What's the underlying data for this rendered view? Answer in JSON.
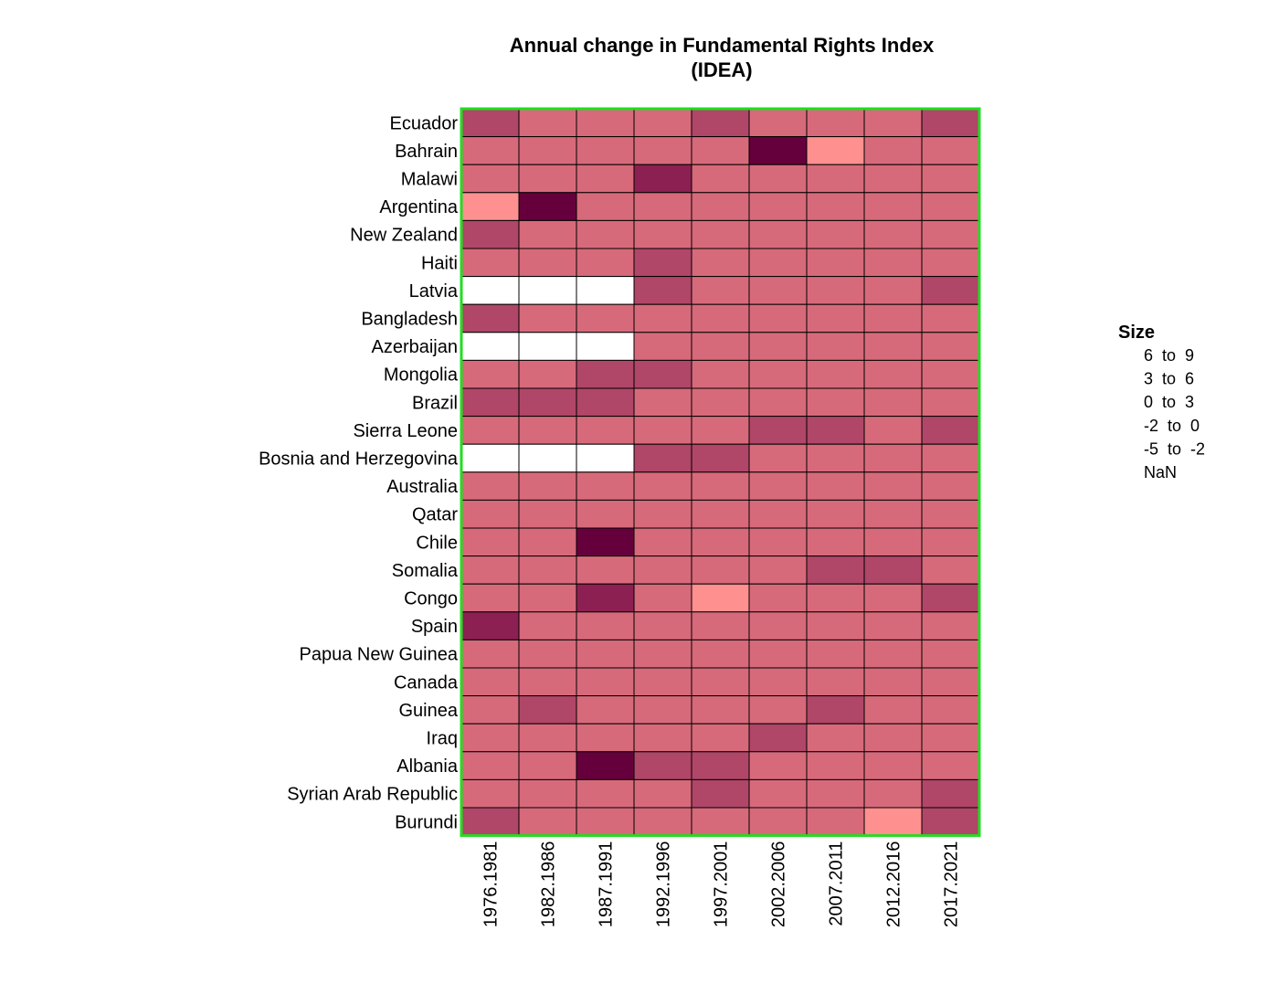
{
  "chart_data": {
    "type": "heatmap",
    "title": [
      "Annual change in Fundamental Rights Index",
      "(IDEA)"
    ],
    "rows": [
      "Ecuador",
      "Bahrain",
      "Malawi",
      "Argentina",
      "New Zealand",
      "Haiti",
      "Latvia",
      "Bangladesh",
      "Azerbaijan",
      "Mongolia",
      "Brazil",
      "Sierra Leone",
      "Bosnia and Herzegovina",
      "Australia",
      "Qatar",
      "Chile",
      "Somalia",
      "Congo",
      "Spain",
      "Papua New Guinea",
      "Canada",
      "Guinea",
      "Iraq",
      "Albania",
      "Syrian Arab Republic",
      "Burundi"
    ],
    "columns": [
      "1976.1981",
      "1982.1986",
      "1987.1991",
      "1992.1996",
      "1997.2001",
      "2002.2006",
      "2007.2011",
      "2012.2016",
      "2017.2021"
    ],
    "bin_labels": [
      "6  to  9",
      "3  to  6",
      "0  to  3",
      "-2  to  0",
      "-5  to  -2",
      "NaN"
    ],
    "bin_colors": [
      "#66003d",
      "#8c2052",
      "#b04668",
      "#d76a7a",
      "#ff9090",
      "#ffffff"
    ],
    "cell_bins": [
      [
        2,
        3,
        3,
        3,
        2,
        3,
        3,
        3,
        2
      ],
      [
        3,
        3,
        3,
        3,
        3,
        0,
        4,
        3,
        3
      ],
      [
        3,
        3,
        3,
        1,
        3,
        3,
        3,
        3,
        3
      ],
      [
        4,
        0,
        3,
        3,
        3,
        3,
        3,
        3,
        3
      ],
      [
        2,
        3,
        3,
        3,
        3,
        3,
        3,
        3,
        3
      ],
      [
        3,
        3,
        3,
        2,
        3,
        3,
        3,
        3,
        3
      ],
      [
        5,
        5,
        5,
        2,
        3,
        3,
        3,
        3,
        2
      ],
      [
        2,
        3,
        3,
        3,
        3,
        3,
        3,
        3,
        3
      ],
      [
        5,
        5,
        5,
        3,
        3,
        3,
        3,
        3,
        3
      ],
      [
        3,
        3,
        2,
        2,
        3,
        3,
        3,
        3,
        3
      ],
      [
        2,
        2,
        2,
        3,
        3,
        3,
        3,
        3,
        3
      ],
      [
        3,
        3,
        3,
        3,
        3,
        2,
        2,
        3,
        2
      ],
      [
        5,
        5,
        5,
        2,
        2,
        3,
        3,
        3,
        3
      ],
      [
        3,
        3,
        3,
        3,
        3,
        3,
        3,
        3,
        3
      ],
      [
        3,
        3,
        3,
        3,
        3,
        3,
        3,
        3,
        3
      ],
      [
        3,
        3,
        0,
        3,
        3,
        3,
        3,
        3,
        3
      ],
      [
        3,
        3,
        3,
        3,
        3,
        3,
        2,
        2,
        3
      ],
      [
        3,
        3,
        1,
        3,
        4,
        3,
        3,
        3,
        2
      ],
      [
        1,
        3,
        3,
        3,
        3,
        3,
        3,
        3,
        3
      ],
      [
        3,
        3,
        3,
        3,
        3,
        3,
        3,
        3,
        3
      ],
      [
        3,
        3,
        3,
        3,
        3,
        3,
        3,
        3,
        3
      ],
      [
        3,
        2,
        3,
        3,
        3,
        3,
        2,
        3,
        3
      ],
      [
        3,
        3,
        3,
        3,
        3,
        2,
        3,
        3,
        3
      ],
      [
        3,
        3,
        0,
        2,
        2,
        3,
        3,
        3,
        3
      ],
      [
        3,
        3,
        3,
        3,
        2,
        3,
        3,
        3,
        2
      ],
      [
        2,
        3,
        3,
        3,
        3,
        3,
        3,
        4,
        2
      ]
    ],
    "legend": {
      "title": "Size",
      "placement": "right"
    },
    "frame_color": "#22dd22",
    "cell_border_color": "#000000"
  }
}
